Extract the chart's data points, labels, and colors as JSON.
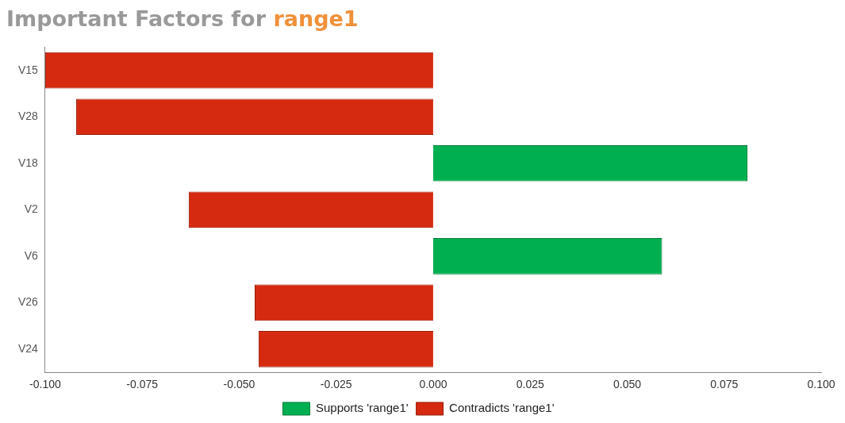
{
  "chart_data": {
    "type": "bar",
    "title": "Important Factors for range1",
    "orientation": "horizontal",
    "categories": [
      "V15",
      "V28",
      "V18",
      "V2",
      "V6",
      "V26",
      "V24"
    ],
    "series": [
      {
        "name": "Supports 'range1'",
        "color": "#00b050",
        "values": [
          null,
          null,
          0.081,
          null,
          0.059,
          null,
          null
        ]
      },
      {
        "name": "Contradicts 'range1'",
        "color": "#d62a10",
        "values": [
          -0.1,
          -0.092,
          null,
          -0.063,
          null,
          -0.046,
          -0.045
        ]
      }
    ],
    "xlim": [
      -0.1,
      0.1
    ],
    "xticks": [
      {
        "value": -0.1,
        "label": "-0.100"
      },
      {
        "value": -0.075,
        "label": "-0.075"
      },
      {
        "value": -0.05,
        "label": "-0.050"
      },
      {
        "value": -0.025,
        "label": "-0.025"
      },
      {
        "value": 0,
        "label": "0.000"
      },
      {
        "value": 0.025,
        "label": "0.025"
      },
      {
        "value": 0.05,
        "label": "0.050"
      },
      {
        "value": 0.075,
        "label": "0.075"
      },
      {
        "value": 0.1,
        "label": "0.100"
      }
    ],
    "grid": false,
    "legend": "bottom"
  }
}
